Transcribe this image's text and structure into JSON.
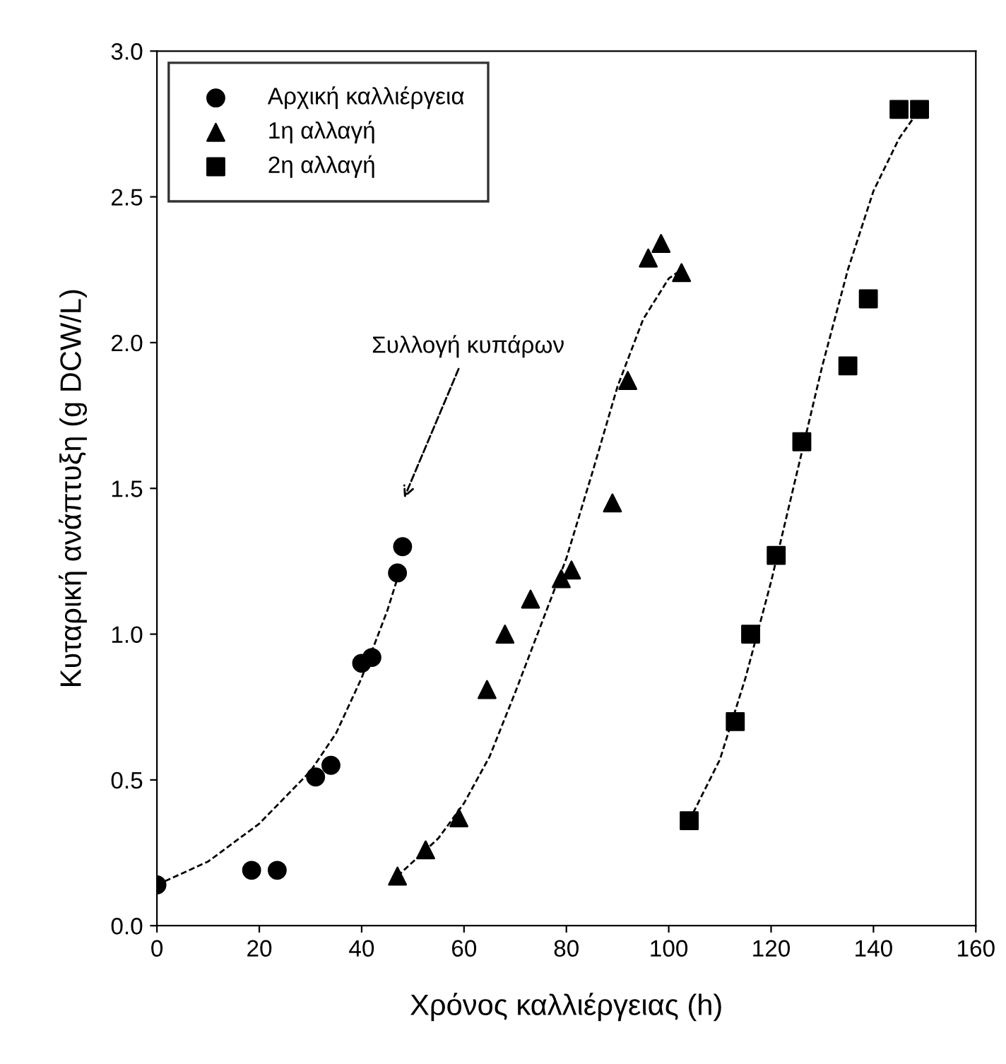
{
  "chart_data": {
    "type": "scatter",
    "xlabel": "Χρόνος καλλιέργειας (h)",
    "ylabel": "Κυταρική ανάπτυξη (g DCW/L)",
    "xlim": [
      0,
      160
    ],
    "ylim": [
      0,
      3.0
    ],
    "xticks": [
      0,
      20,
      40,
      60,
      80,
      100,
      120,
      140,
      160
    ],
    "yticks": [
      {
        "value": 0,
        "label": "0.0"
      },
      0.5,
      {
        "value": 1,
        "label": "1.0"
      },
      1.5,
      {
        "value": 2,
        "label": "2.0"
      },
      2.5,
      {
        "value": 3,
        "label": "3.0"
      }
    ],
    "grid": false,
    "legend": "top left",
    "series": [
      {
        "name": "Αρχική καλλιέργεια",
        "color": "#000000",
        "marker": "circle",
        "x": [
          0,
          18.5,
          23.5,
          31,
          34,
          40,
          42,
          47,
          48
        ],
        "values": [
          0.14,
          0.19,
          0.19,
          0.51,
          0.55,
          0.9,
          0.92,
          1.21,
          1.3
        ]
      },
      {
        "name": "1η αλλαγή",
        "color": "#000000",
        "marker": "triangle",
        "x": [
          47,
          52.5,
          59,
          64.5,
          68,
          73,
          79,
          81,
          89,
          92,
          96,
          98.5,
          102.5
        ],
        "values": [
          0.17,
          0.26,
          0.37,
          0.81,
          1.0,
          1.12,
          1.19,
          1.22,
          1.45,
          1.87,
          2.29,
          2.34,
          2.24
        ]
      },
      {
        "name": "2η αλλαγή",
        "color": "#000000",
        "marker": "square",
        "x": [
          104,
          113,
          116,
          121,
          126,
          135,
          139,
          145,
          149
        ],
        "values": [
          0.36,
          0.7,
          1.0,
          1.27,
          1.66,
          1.92,
          2.15,
          2.8,
          2.8
        ]
      },
      {
        "type": "line",
        "color": "#000000",
        "line_style": "dashed",
        "x": [
          0,
          10,
          20,
          30,
          35,
          40,
          45,
          47.5
        ],
        "values": [
          0.14,
          0.22,
          0.35,
          0.53,
          0.66,
          0.85,
          1.08,
          1.22
        ]
      },
      {
        "type": "line",
        "color": "#000000",
        "line_style": "dashed",
        "x": [
          47,
          55,
          60,
          65,
          70,
          75,
          80,
          85,
          90,
          95,
          100,
          102.5
        ],
        "values": [
          0.17,
          0.3,
          0.42,
          0.58,
          0.8,
          1.03,
          1.26,
          1.55,
          1.85,
          2.08,
          2.22,
          2.25
        ]
      },
      {
        "type": "line",
        "color": "#000000",
        "line_style": "dashed",
        "x": [
          104,
          110,
          115,
          120,
          125,
          130,
          135,
          140,
          145,
          149
        ],
        "values": [
          0.36,
          0.57,
          0.85,
          1.18,
          1.55,
          1.92,
          2.25,
          2.52,
          2.7,
          2.8
        ]
      }
    ],
    "annotations": [
      "Συλλογή κυπάρων"
    ]
  }
}
